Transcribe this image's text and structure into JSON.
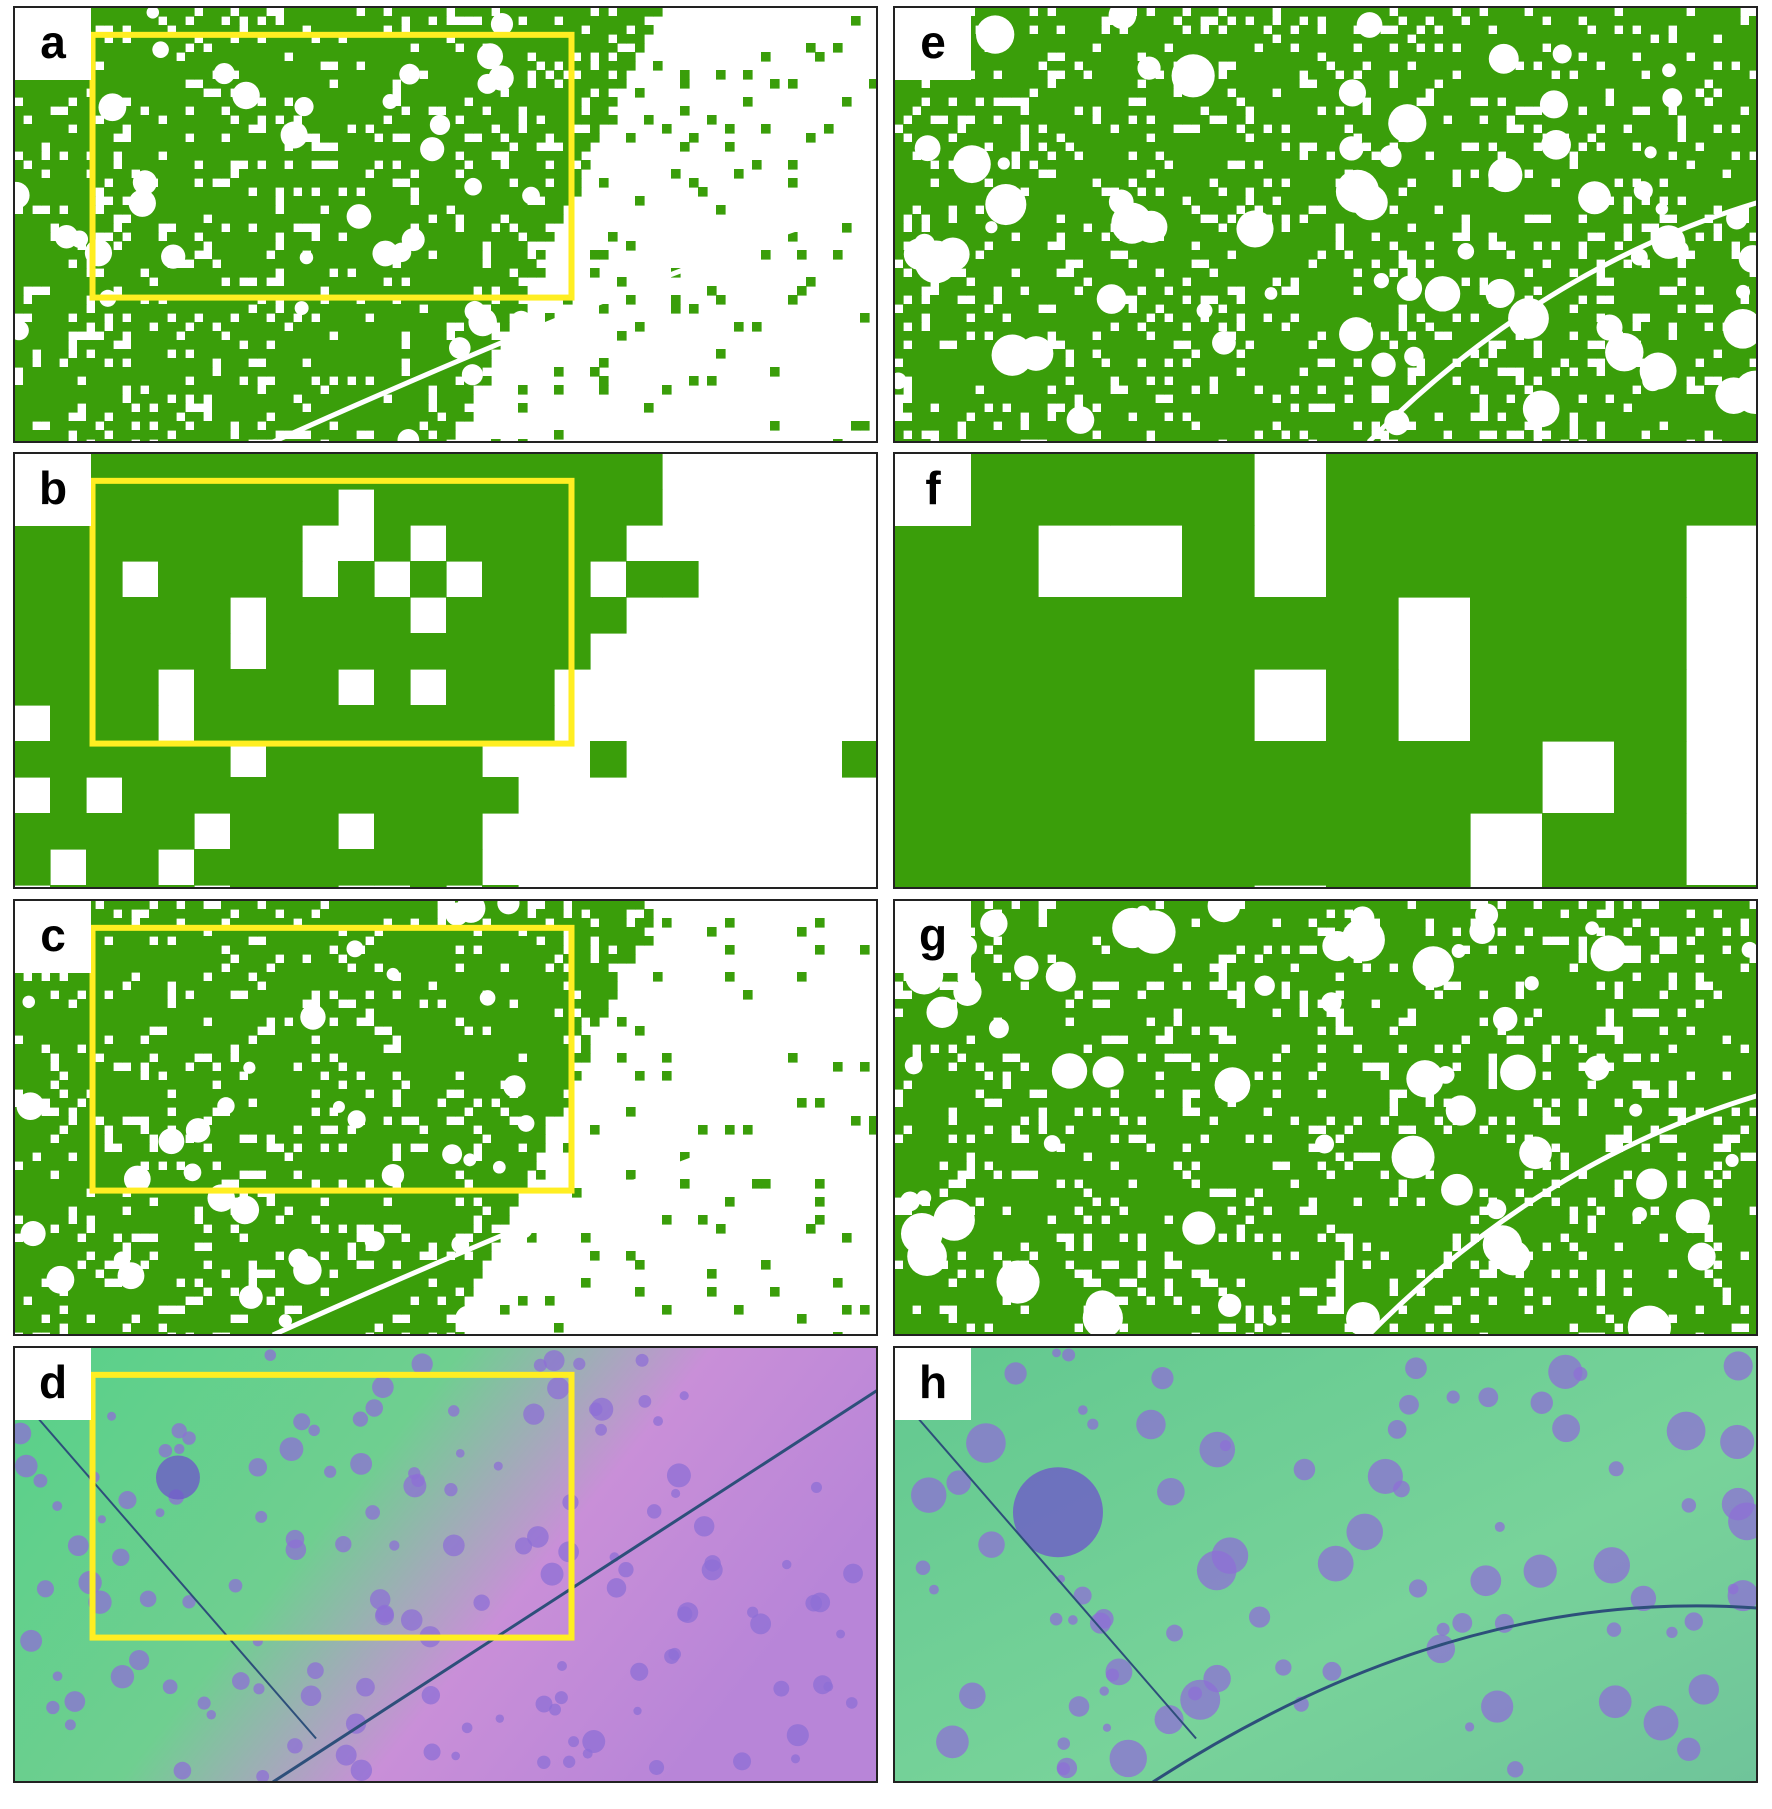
{
  "panels": [
    {
      "label": "a"
    },
    {
      "label": "b"
    },
    {
      "label": "c"
    },
    {
      "label": "d"
    },
    {
      "label": "e"
    },
    {
      "label": "f"
    },
    {
      "label": "g"
    },
    {
      "label": "h"
    }
  ]
}
